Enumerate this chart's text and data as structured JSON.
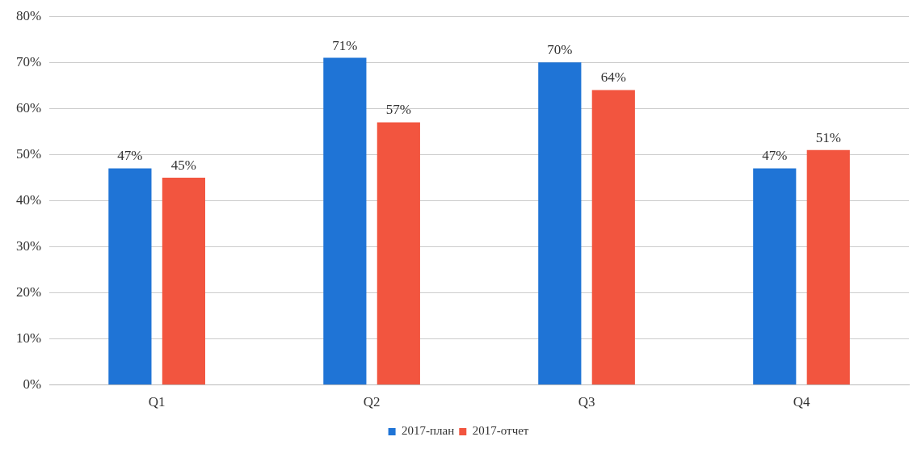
{
  "chart_data": {
    "type": "bar",
    "categories": [
      "Q1",
      "Q2",
      "Q3",
      "Q4"
    ],
    "series": [
      {
        "name": "2017-план",
        "color": "#1f74d6",
        "values": [
          47,
          71,
          70,
          47
        ],
        "value_labels": [
          "47%",
          "71%",
          "70%",
          "47%"
        ]
      },
      {
        "name": "2017-отчет",
        "color": "#f2553f",
        "values": [
          45,
          57,
          64,
          51
        ],
        "value_labels": [
          "45%",
          "57%",
          "64%",
          "51%"
        ]
      }
    ],
    "ylim": [
      0,
      80
    ],
    "yticks": [
      {
        "value": 0,
        "label": "0%"
      },
      {
        "value": 10,
        "label": "10%"
      },
      {
        "value": 20,
        "label": "20%"
      },
      {
        "value": 30,
        "label": "30%"
      },
      {
        "value": 40,
        "label": "40%"
      },
      {
        "value": 50,
        "label": "50%"
      },
      {
        "value": 60,
        "label": "60%"
      },
      {
        "value": 70,
        "label": "70%"
      },
      {
        "value": 80,
        "label": "80%"
      }
    ],
    "grid": "y",
    "legend": "bottom"
  }
}
